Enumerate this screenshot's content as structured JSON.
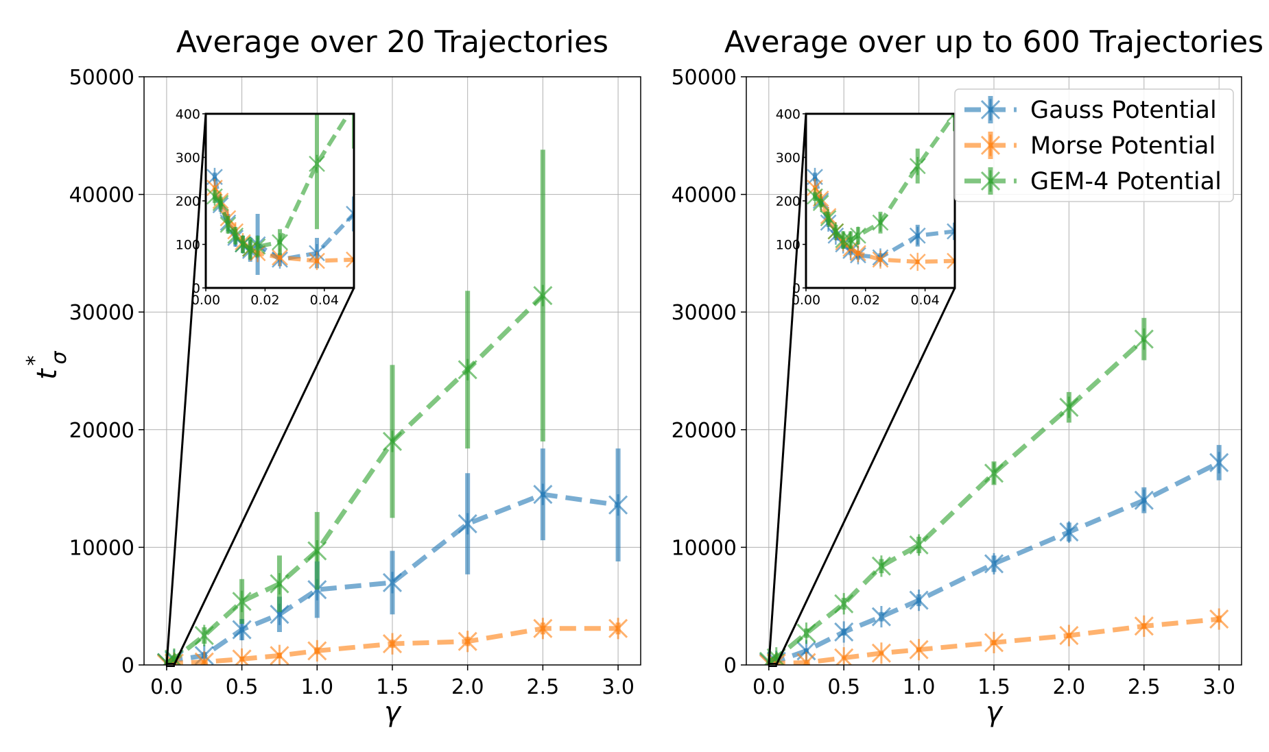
{
  "chart_data": [
    {
      "type": "line",
      "title": "Average over 20 Trajectories",
      "xlabel": "γ",
      "ylabel_main": "t",
      "ylabel_sup": "*",
      "ylabel_sub": "σ",
      "xlim": [
        -0.15,
        3.15
      ],
      "ylim": [
        0,
        50000
      ],
      "xticks": [
        0.0,
        0.5,
        1.0,
        1.5,
        2.0,
        2.5,
        3.0
      ],
      "xtick_labels": [
        "0.0",
        "0.5",
        "1.0",
        "1.5",
        "2.0",
        "2.5",
        "3.0"
      ],
      "yticks": [
        0,
        10000,
        20000,
        30000,
        40000,
        50000
      ],
      "ytick_labels": [
        "0",
        "10000",
        "20000",
        "30000",
        "40000",
        "50000"
      ],
      "grid": true,
      "legend": false,
      "series": [
        {
          "name": "Gauss Potential",
          "color": "#1f77b4",
          "x": [
            0.0,
            0.05,
            0.25,
            0.5,
            0.75,
            1.0,
            1.5,
            2.0,
            2.5,
            3.0
          ],
          "y": [
            200,
            400,
            800,
            3000,
            4300,
            6400,
            7000,
            12000,
            14500,
            13600
          ],
          "err": [
            100,
            150,
            300,
            900,
            1500,
            2400,
            2700,
            4300,
            3900,
            4800
          ]
        },
        {
          "name": "Morse Potential",
          "color": "#ff7f0e",
          "x": [
            0.0,
            0.05,
            0.25,
            0.5,
            0.75,
            1.0,
            1.5,
            2.0,
            2.5,
            3.0
          ],
          "y": [
            100,
            150,
            250,
            500,
            800,
            1200,
            1800,
            2000,
            3100,
            3100
          ],
          "err": [
            40,
            50,
            100,
            200,
            250,
            300,
            350,
            400,
            500,
            500
          ]
        },
        {
          "name": "GEM-4 Potential",
          "color": "#2ca02c",
          "x": [
            0.0,
            0.05,
            0.25,
            0.5,
            0.75,
            1.0,
            1.5,
            2.0,
            2.5
          ],
          "y": [
            200,
            500,
            2500,
            5400,
            6900,
            9700,
            19000,
            25100,
            31400
          ],
          "err": [
            100,
            200,
            700,
            1900,
            2400,
            3300,
            6500,
            6700,
            12400
          ]
        }
      ],
      "inset": {
        "xlim": [
          0.0,
          0.05
        ],
        "ylim": [
          0,
          400
        ],
        "xticks": [
          0.0,
          0.02,
          0.04
        ],
        "xtick_labels": [
          "0.00",
          "0.02",
          "0.04"
        ],
        "yticks": [
          0,
          100,
          200,
          300,
          400
        ],
        "ytick_labels": [
          "0",
          "100",
          "200",
          "300",
          "400"
        ],
        "series": [
          {
            "name": "Gauss Potential",
            "color": "#1f77b4",
            "x": [
              0.003,
              0.005,
              0.0075,
              0.01,
              0.0125,
              0.015,
              0.0175,
              0.025,
              0.0375,
              0.05
            ],
            "y": [
              255,
              190,
              150,
              115,
              100,
              85,
              100,
              65,
              80,
              170
            ],
            "err": [
              10,
              15,
              20,
              20,
              20,
              25,
              70,
              15,
              35,
              40
            ]
          },
          {
            "name": "Morse Potential",
            "color": "#ff7f0e",
            "x": [
              0.003,
              0.005,
              0.0075,
              0.01,
              0.0125,
              0.015,
              0.0175,
              0.025,
              0.0375,
              0.05
            ],
            "y": [
              230,
              200,
              160,
              130,
              105,
              90,
              80,
              70,
              62,
              65
            ],
            "err": [
              5,
              5,
              5,
              5,
              5,
              5,
              5,
              5,
              5,
              5
            ]
          },
          {
            "name": "GEM-4 Potential",
            "color": "#2ca02c",
            "x": [
              0.003,
              0.005,
              0.0075,
              0.01,
              0.0125,
              0.015,
              0.0175,
              0.025,
              0.0375,
              0.05
            ],
            "y": [
              210,
              195,
              145,
              120,
              100,
              90,
              95,
              105,
              285,
              420
            ],
            "err": [
              15,
              15,
              20,
              20,
              20,
              25,
              25,
              30,
              150,
              100
            ]
          }
        ]
      }
    },
    {
      "type": "line",
      "title": "Average over up to 600 Trajectories",
      "xlabel": "γ",
      "xlim": [
        -0.15,
        3.15
      ],
      "ylim": [
        0,
        50000
      ],
      "xticks": [
        0.0,
        0.5,
        1.0,
        1.5,
        2.0,
        2.5,
        3.0
      ],
      "xtick_labels": [
        "0.0",
        "0.5",
        "1.0",
        "1.5",
        "2.0",
        "2.5",
        "3.0"
      ],
      "yticks": [
        0,
        10000,
        20000,
        30000,
        40000,
        50000
      ],
      "ytick_labels": [
        "0",
        "10000",
        "20000",
        "30000",
        "40000",
        "50000"
      ],
      "grid": true,
      "legend": "top-right",
      "series": [
        {
          "name": "Gauss Potential",
          "color": "#1f77b4",
          "x": [
            0.0,
            0.05,
            0.25,
            0.5,
            0.75,
            1.0,
            1.5,
            2.0,
            2.5,
            3.0
          ],
          "y": [
            200,
            300,
            1200,
            2800,
            4100,
            5500,
            8600,
            11300,
            14000,
            17200
          ],
          "err": [
            50,
            100,
            200,
            300,
            400,
            500,
            700,
            800,
            1100,
            1500
          ]
        },
        {
          "name": "Morse Potential",
          "color": "#ff7f0e",
          "x": [
            0.0,
            0.05,
            0.25,
            0.5,
            0.75,
            1.0,
            1.5,
            2.0,
            2.5,
            3.0
          ],
          "y": [
            100,
            150,
            200,
            600,
            1000,
            1300,
            1900,
            2500,
            3300,
            3900
          ],
          "err": [
            30,
            40,
            50,
            100,
            100,
            150,
            200,
            200,
            250,
            300
          ]
        },
        {
          "name": "GEM-4 Potential",
          "color": "#2ca02c",
          "x": [
            0.0,
            0.05,
            0.25,
            0.5,
            0.75,
            1.0,
            1.5,
            2.0,
            2.5
          ],
          "y": [
            300,
            600,
            2700,
            5200,
            8400,
            10200,
            16300,
            21900,
            27700
          ],
          "err": [
            50,
            100,
            400,
            500,
            600,
            700,
            1000,
            1300,
            1800
          ]
        }
      ],
      "inset": {
        "xlim": [
          0.0,
          0.05
        ],
        "ylim": [
          0,
          400
        ],
        "xticks": [
          0.0,
          0.02,
          0.04
        ],
        "xtick_labels": [
          "0.00",
          "0.02",
          "0.04"
        ],
        "yticks": [
          0,
          100,
          200,
          300,
          400
        ],
        "ytick_labels": [
          "0",
          "100",
          "200",
          "300",
          "400"
        ],
        "series": [
          {
            "name": "Gauss Potential",
            "color": "#1f77b4",
            "x": [
              0.003,
              0.005,
              0.0075,
              0.01,
              0.0125,
              0.015,
              0.0175,
              0.025,
              0.0375,
              0.05
            ],
            "y": [
              255,
              200,
              150,
              120,
              100,
              85,
              75,
              70,
              120,
              130
            ],
            "err": [
              10,
              10,
              10,
              10,
              10,
              10,
              10,
              10,
              25,
              20
            ]
          },
          {
            "name": "Morse Potential",
            "color": "#ff7f0e",
            "x": [
              0.003,
              0.005,
              0.0075,
              0.01,
              0.0125,
              0.015,
              0.0175,
              0.025,
              0.0375,
              0.05
            ],
            "y": [
              230,
              205,
              165,
              130,
              105,
              90,
              80,
              65,
              60,
              62
            ],
            "err": [
              5,
              5,
              5,
              5,
              5,
              5,
              5,
              5,
              5,
              5
            ]
          },
          {
            "name": "GEM-4 Potential",
            "color": "#2ca02c",
            "x": [
              0.003,
              0.005,
              0.0075,
              0.01,
              0.0125,
              0.015,
              0.0175,
              0.025,
              0.0375,
              0.05
            ],
            "y": [
              210,
              195,
              160,
              130,
              110,
              110,
              120,
              150,
              280,
              400
            ],
            "err": [
              10,
              10,
              15,
              15,
              20,
              20,
              20,
              25,
              40,
              40
            ]
          }
        ]
      }
    }
  ]
}
